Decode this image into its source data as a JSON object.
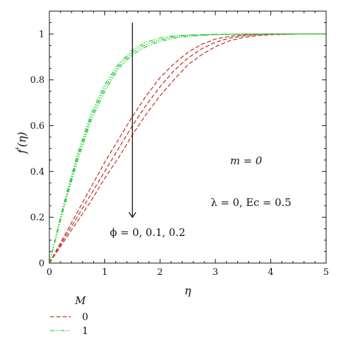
{
  "chart_data": {
    "type": "line",
    "title": "",
    "xlabel": "η",
    "ylabel_main": "f",
    "ylabel_prime": "'",
    "ylabel_arg": "(η)",
    "xlim": [
      0,
      5
    ],
    "ylim": [
      0,
      1.1
    ],
    "xticks": [
      "0",
      "1",
      "2",
      "3",
      "4",
      "5"
    ],
    "yticks": [
      "0",
      "0.2",
      "0.4",
      "0.6",
      "0.8",
      "1"
    ],
    "annotations": {
      "m_eq": "m = 0",
      "lambda_ec": "λ = 0, Ec = 0.5",
      "phi": "ϕ = 0, 0.1, 0.2"
    },
    "arrow_x": 1.5,
    "arrow_y_from": 1.05,
    "arrow_y_to": 0.2,
    "legend": {
      "title": "M",
      "entries": [
        {
          "label": "0",
          "style": "dashed",
          "color": "#c0392b"
        },
        {
          "label": "1",
          "style": "dashdotdot",
          "color": "#2ecc40"
        }
      ]
    },
    "series": [
      {
        "group": "0",
        "color": "#c0392b",
        "style": "dashed",
        "x": [
          0,
          0.25,
          0.5,
          0.75,
          1,
          1.25,
          1.5,
          1.75,
          2,
          2.25,
          2.5,
          2.75,
          3,
          3.25,
          3.5,
          3.75,
          4,
          4.5,
          5
        ],
        "values": [
          0,
          0.11,
          0.22,
          0.33,
          0.44,
          0.54,
          0.64,
          0.73,
          0.81,
          0.87,
          0.92,
          0.955,
          0.978,
          0.99,
          0.996,
          0.999,
          1.0,
          1.0,
          1.0
        ]
      },
      {
        "group": "0",
        "color": "#c0392b",
        "style": "dashed",
        "x": [
          0,
          0.25,
          0.5,
          0.75,
          1,
          1.25,
          1.5,
          1.75,
          2,
          2.25,
          2.5,
          2.75,
          3,
          3.25,
          3.5,
          3.75,
          4,
          4.5,
          5
        ],
        "values": [
          0,
          0.1,
          0.2,
          0.3,
          0.4,
          0.5,
          0.6,
          0.69,
          0.77,
          0.84,
          0.895,
          0.935,
          0.964,
          0.982,
          0.992,
          0.997,
          0.999,
          1.0,
          1.0
        ]
      },
      {
        "group": "0",
        "color": "#c0392b",
        "style": "dashed",
        "x": [
          0,
          0.25,
          0.5,
          0.75,
          1,
          1.25,
          1.5,
          1.75,
          2,
          2.25,
          2.5,
          2.75,
          3,
          3.25,
          3.5,
          3.75,
          4,
          4.5,
          5
        ],
        "values": [
          0,
          0.09,
          0.18,
          0.27,
          0.37,
          0.46,
          0.56,
          0.65,
          0.73,
          0.8,
          0.865,
          0.91,
          0.945,
          0.97,
          0.985,
          0.993,
          0.997,
          1.0,
          1.0
        ]
      },
      {
        "group": "1",
        "color": "#2ecc40",
        "style": "dashdotdot",
        "x": [
          0,
          0.25,
          0.5,
          0.75,
          1,
          1.25,
          1.5,
          1.75,
          2,
          2.25,
          2.5,
          3,
          3.5,
          4,
          5
        ],
        "values": [
          0,
          0.25,
          0.47,
          0.65,
          0.78,
          0.87,
          0.93,
          0.965,
          0.983,
          0.992,
          0.996,
          0.999,
          1.0,
          1.0,
          1.0
        ]
      },
      {
        "group": "1",
        "color": "#2ecc40",
        "style": "dashdotdot",
        "x": [
          0,
          0.25,
          0.5,
          0.75,
          1,
          1.25,
          1.5,
          1.75,
          2,
          2.25,
          2.5,
          3,
          3.5,
          4,
          5
        ],
        "values": [
          0,
          0.24,
          0.455,
          0.635,
          0.765,
          0.86,
          0.92,
          0.955,
          0.975,
          0.988,
          0.994,
          0.998,
          1.0,
          1.0,
          1.0
        ]
      },
      {
        "group": "1",
        "color": "#2ecc40",
        "style": "dashdotdot",
        "x": [
          0,
          0.25,
          0.5,
          0.75,
          1,
          1.25,
          1.5,
          1.75,
          2,
          2.25,
          2.5,
          3,
          3.5,
          4,
          5
        ],
        "values": [
          0,
          0.23,
          0.44,
          0.62,
          0.75,
          0.85,
          0.91,
          0.945,
          0.968,
          0.982,
          0.99,
          0.997,
          1.0,
          1.0,
          1.0
        ]
      }
    ]
  }
}
